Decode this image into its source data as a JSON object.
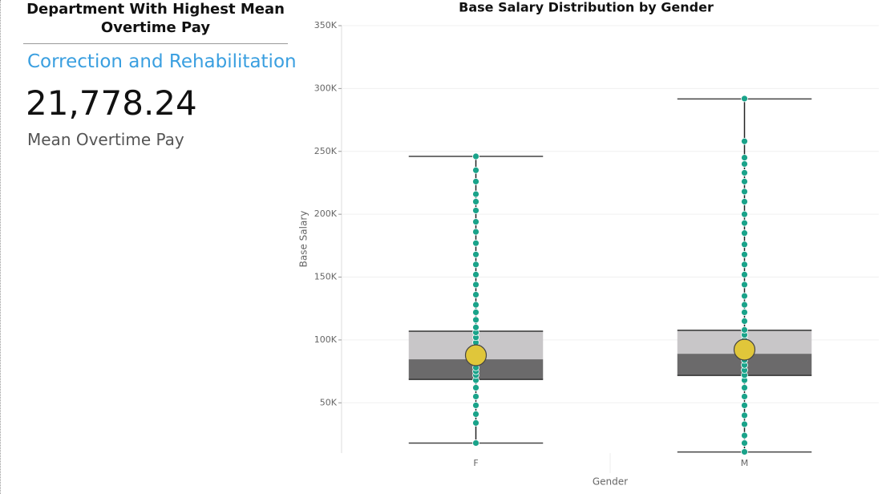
{
  "card": {
    "title": "Department With Highest Mean Overtime Pay",
    "department": "Correction and Rehabilitation",
    "value": "21,778.24",
    "label": "Mean Overtime Pay"
  },
  "chart_data": {
    "type": "box",
    "title": "Base Salary Distribution by Gender",
    "x_label": "Gender",
    "y_label": "Base Salary",
    "categories": [
      "F",
      "M"
    ],
    "boxes": [
      {
        "min": 18000,
        "q1": 68600,
        "median": 84600,
        "q3": 107000,
        "max": 246000,
        "mean": 87800,
        "points": [
          18000,
          34000,
          41000,
          48000,
          55000,
          62000,
          68000,
          72000,
          75000,
          78000,
          82000,
          86000,
          90000,
          94000,
          98000,
          102000,
          106000,
          110000,
          116000,
          122000,
          128000,
          136000,
          144000,
          152000,
          160000,
          168000,
          177000,
          186000,
          194000,
          203000,
          210000,
          216000,
          226000,
          235000,
          246000
        ]
      },
      {
        "min": 10900,
        "q1": 71800,
        "median": 89000,
        "q3": 107700,
        "max": 291700,
        "mean": 92300,
        "points": [
          11000,
          18000,
          24000,
          33000,
          40000,
          48000,
          55000,
          62000,
          68000,
          72000,
          76000,
          80000,
          84000,
          88000,
          92000,
          96000,
          100000,
          104000,
          108000,
          115000,
          122000,
          128000,
          135000,
          144000,
          152000,
          160000,
          168000,
          176000,
          185000,
          193000,
          200000,
          210000,
          218000,
          226000,
          233000,
          240000,
          245000,
          258000,
          292000
        ]
      }
    ],
    "ylim": [
      10000,
      350000
    ],
    "yticks": [
      {
        "value": 50000,
        "label": "50K"
      },
      {
        "value": 100000,
        "label": "100K"
      },
      {
        "value": 150000,
        "label": "150K"
      },
      {
        "value": 200000,
        "label": "200K"
      },
      {
        "value": 250000,
        "label": "250K"
      },
      {
        "value": 300000,
        "label": "300K"
      },
      {
        "value": 350000,
        "label": "350K"
      }
    ],
    "grid": true,
    "box_upper_color": "#c8c6c8",
    "box_lower_color": "#6b6a6b",
    "mean_color": "#e0c63a",
    "point_color": "#1aa38a"
  }
}
